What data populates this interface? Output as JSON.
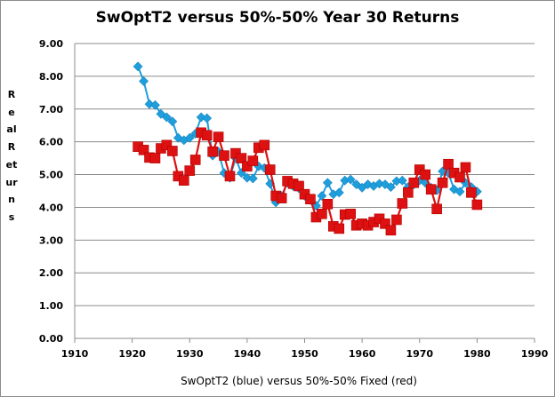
{
  "chart_data": {
    "type": "line",
    "title": "SwOptT2 versus 50%-50% Year 30 Returns",
    "xlabel": "SwOptT2 (blue) versus 50%-50% Fixed (red)",
    "ylabel": "Real Returns",
    "xlim": [
      1910,
      1990
    ],
    "ylim": [
      0,
      9
    ],
    "x_ticks": [
      "1910",
      "1920",
      "1930",
      "1940",
      "1950",
      "1960",
      "1970",
      "1980",
      "1990"
    ],
    "y_ticks": [
      "0.00",
      "1.00",
      "2.00",
      "3.00",
      "4.00",
      "5.00",
      "6.00",
      "7.00",
      "8.00",
      "9.00"
    ],
    "grid": "horizontal",
    "legend": "none",
    "x": [
      1921,
      1922,
      1923,
      1924,
      1925,
      1926,
      1927,
      1928,
      1929,
      1930,
      1931,
      1932,
      1933,
      1934,
      1935,
      1936,
      1937,
      1938,
      1939,
      1940,
      1941,
      1942,
      1943,
      1944,
      1945,
      1946,
      1947,
      1948,
      1949,
      1950,
      1951,
      1952,
      1953,
      1954,
      1955,
      1956,
      1957,
      1958,
      1959,
      1960,
      1961,
      1962,
      1963,
      1964,
      1965,
      1966,
      1967,
      1968,
      1969,
      1970,
      1971,
      1972,
      1973,
      1974,
      1975,
      1976,
      1977,
      1978,
      1979,
      1980
    ],
    "series": [
      {
        "color": "#1e9fdc",
        "marker": "diamond",
        "values": [
          8.3,
          7.85,
          7.15,
          7.12,
          6.85,
          6.75,
          6.62,
          6.12,
          6.05,
          6.12,
          6.25,
          6.75,
          6.72,
          5.58,
          5.7,
          5.05,
          4.9,
          5.5,
          5.05,
          4.9,
          4.88,
          5.25,
          5.2,
          4.72,
          4.15,
          4.35,
          4.75,
          4.65,
          4.58,
          4.35,
          4.22,
          4.05,
          4.35,
          4.75,
          4.4,
          4.45,
          4.82,
          4.85,
          4.7,
          4.6,
          4.7,
          4.65,
          4.72,
          4.7,
          4.62,
          4.8,
          4.82,
          4.62,
          4.7,
          4.82,
          4.75,
          4.6,
          4.52,
          5.1,
          5.05,
          4.55,
          4.48,
          4.75,
          4.62,
          4.48
        ]
      },
      {
        "color": "#dd1111",
        "marker": "square",
        "values": [
          5.85,
          5.75,
          5.52,
          5.5,
          5.8,
          5.9,
          5.72,
          4.95,
          4.82,
          5.12,
          5.45,
          6.28,
          6.2,
          5.7,
          6.15,
          5.58,
          4.95,
          5.65,
          5.5,
          5.25,
          5.42,
          5.82,
          5.9,
          5.15,
          4.35,
          4.28,
          4.8,
          4.72,
          4.65,
          4.4,
          4.25,
          3.7,
          3.8,
          4.1,
          3.42,
          3.35,
          3.78,
          3.8,
          3.45,
          3.5,
          3.45,
          3.55,
          3.65,
          3.5,
          3.3,
          3.62,
          4.12,
          4.45,
          4.75,
          5.15,
          5.0,
          4.55,
          3.95,
          4.75,
          5.32,
          5.05,
          4.92,
          5.22,
          4.45,
          4.08
        ]
      }
    ]
  }
}
